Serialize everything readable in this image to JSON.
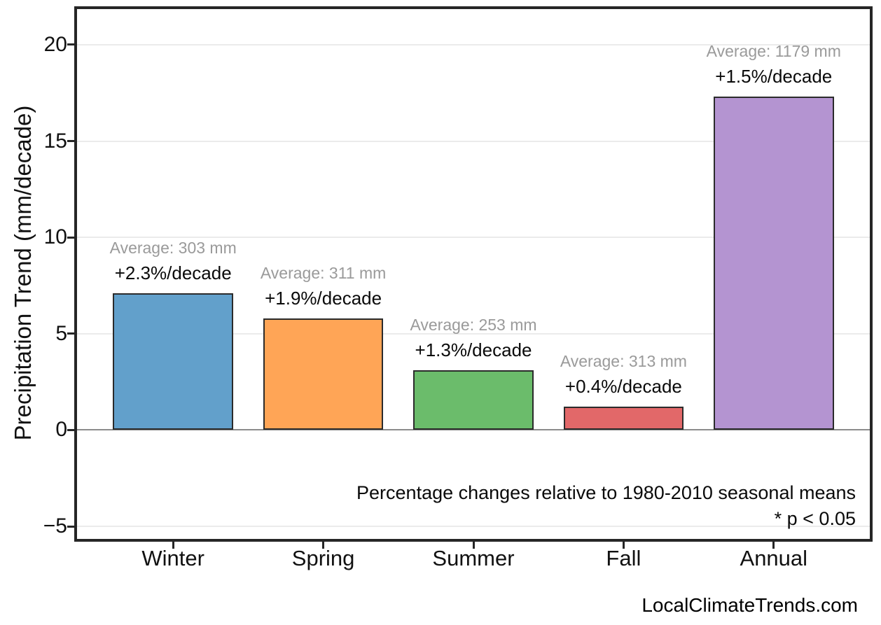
{
  "chart_data": {
    "type": "bar",
    "title": "",
    "xlabel": "",
    "ylabel": "Precipitation Trend (mm/decade)",
    "categories": [
      "Winter",
      "Spring",
      "Summer",
      "Fall",
      "Annual"
    ],
    "values": [
      7.1,
      5.8,
      3.1,
      1.2,
      17.3
    ],
    "averages_mm": [
      303,
      311,
      253,
      313,
      1179
    ],
    "percent_change_per_decade": [
      2.3,
      1.9,
      1.3,
      0.4,
      1.5
    ],
    "bar_labels": [
      {
        "average": "Average: 303 mm",
        "trend": "+2.3%/decade"
      },
      {
        "average": "Average: 311 mm",
        "trend": "+1.9%/decade"
      },
      {
        "average": "Average: 253 mm",
        "trend": "+1.3%/decade"
      },
      {
        "average": "Average: 313 mm",
        "trend": "+0.4%/decade"
      },
      {
        "average": "Average: 1179 mm",
        "trend": "+1.5%/decade"
      }
    ],
    "bar_colors": [
      "#62A0CB",
      "#FFA556",
      "#6BBC6B",
      "#E26869",
      "#B494D1"
    ],
    "bar_edge_color": "#2B2B2B",
    "yticks": [
      {
        "value": -5,
        "label": "−5"
      },
      {
        "value": 0,
        "label": "0"
      },
      {
        "value": 5,
        "label": "5"
      },
      {
        "value": 10,
        "label": "10"
      },
      {
        "value": 15,
        "label": "15"
      },
      {
        "value": 20,
        "label": "20"
      }
    ],
    "ylim": [
      -5.65,
      21.85
    ],
    "grid": true,
    "legend_position": "none",
    "annotations": [
      "Percentage changes relative to 1980-2010 seasonal means",
      "* p < 0.05"
    ],
    "colors": {
      "background": "#FFFFFF",
      "spine": "#262626",
      "grid": "#EBEBEB",
      "zero_line": "#8C8C8C",
      "average_label": "#9A9A9A",
      "trend_label": "#0A0A0A",
      "tick_label": "#111111"
    }
  },
  "footer": {
    "watermark": "LocalClimateTrends.com"
  }
}
